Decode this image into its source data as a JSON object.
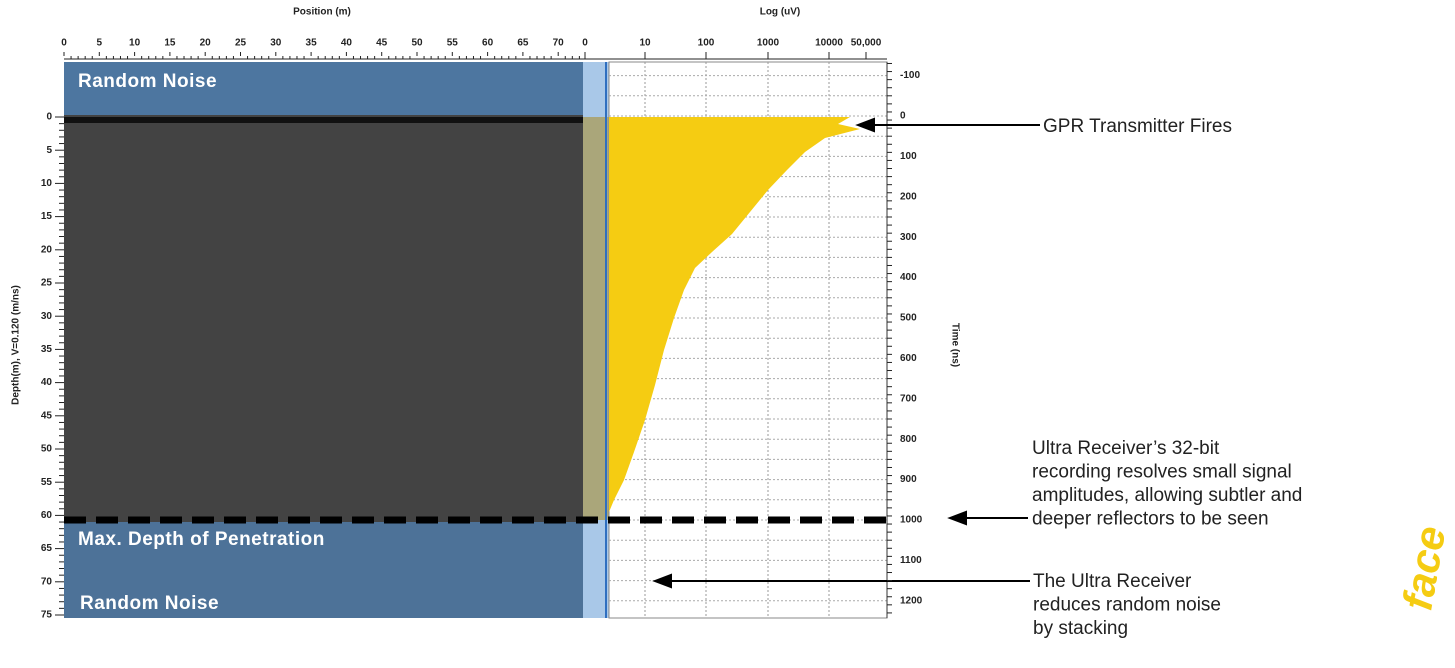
{
  "position_axis": {
    "title": "Position (m)",
    "ticks": [
      0,
      5,
      10,
      15,
      20,
      25,
      30,
      35,
      40,
      45,
      50,
      55,
      60,
      65,
      70
    ]
  },
  "depth_axis": {
    "title": "Depth(m), V=0.120 (m/ns)",
    "ticks": [
      0,
      5,
      10,
      15,
      20,
      25,
      30,
      35,
      40,
      45,
      50,
      55,
      60,
      65,
      70,
      75
    ]
  },
  "log_axis": {
    "title": "Log (uV)",
    "ticks": [
      "0",
      "10",
      "100",
      "1000",
      "10000",
      "50,000"
    ]
  },
  "time_axis": {
    "title": "Time (ns)",
    "ticks": [
      -100,
      0,
      100,
      200,
      300,
      400,
      500,
      600,
      700,
      800,
      900,
      1000,
      1100,
      1200
    ]
  },
  "overlays": {
    "top_noise": "Random Noise",
    "max_depth": "Max. Depth of Penetration",
    "bottom_noise": "Random Noise"
  },
  "annotations": {
    "transmitter": "GPR Transmitter Fires",
    "receiver": [
      "Ultra Receiver’s 32-bit",
      "recording resolves small signal",
      "amplitudes, allowing subtler and",
      "deeper reflectors to be seen"
    ],
    "stacking": [
      "The Ultra Receiver",
      "reduces random noise",
      "by stacking"
    ]
  },
  "corner_text": "face"
}
